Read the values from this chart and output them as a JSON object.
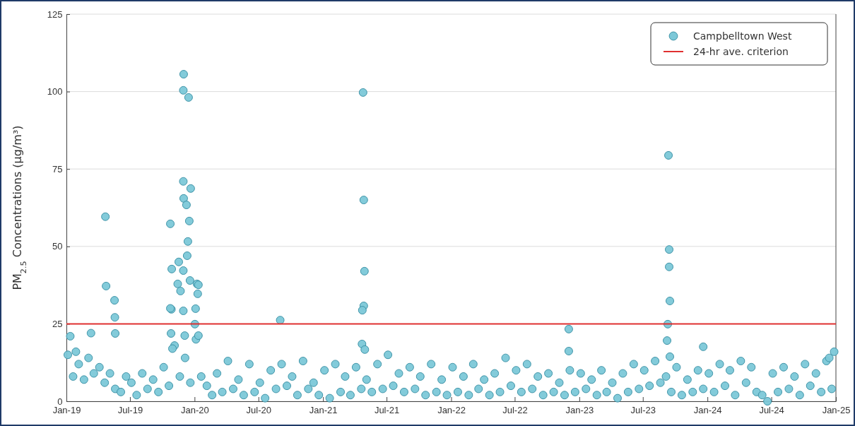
{
  "chart_data": {
    "type": "scatter",
    "ylabel": "PM$_{2.5}$ Concentrations (µg/m³)",
    "xlim": [
      "2019-01-01",
      "2025-01-01"
    ],
    "xticks": [
      {
        "value": "2019-01-01",
        "label": "Jan-19"
      },
      {
        "value": "2019-07-01",
        "label": "Jul-19"
      },
      {
        "value": "2020-01-01",
        "label": "Jan-20"
      },
      {
        "value": "2020-07-01",
        "label": "Jul-20"
      },
      {
        "value": "2021-01-01",
        "label": "Jan-21"
      },
      {
        "value": "2021-07-01",
        "label": "Jul-21"
      },
      {
        "value": "2022-01-01",
        "label": "Jan-22"
      },
      {
        "value": "2022-07-01",
        "label": "Jul-22"
      },
      {
        "value": "2023-01-01",
        "label": "Jan-23"
      },
      {
        "value": "2023-07-01",
        "label": "Jul-23"
      },
      {
        "value": "2024-01-01",
        "label": "Jan-24"
      },
      {
        "value": "2024-07-01",
        "label": "Jul-24"
      },
      {
        "value": "2025-01-01",
        "label": "Jan-25"
      }
    ],
    "ylim": [
      0,
      125
    ],
    "yticks": [
      0,
      25,
      50,
      75,
      100,
      125
    ],
    "grid": "y",
    "legend": "top right",
    "marker": "circle",
    "ref_lines": [
      {
        "axis": "y",
        "value": 25,
        "label": "24-hr ave. criterion",
        "color": "#e03030"
      }
    ],
    "series": [
      {
        "name": "Campbelltown West",
        "color": "#7cc8d8",
        "x": [
          "2019-01-05",
          "2019-01-20",
          "2019-02-05",
          "2019-02-20",
          "2019-03-05",
          "2019-03-20",
          "2019-04-05",
          "2019-04-20",
          "2019-05-05",
          "2019-05-20",
          "2019-06-05",
          "2019-06-20",
          "2019-07-05",
          "2019-07-20",
          "2019-08-05",
          "2019-08-20",
          "2019-09-05",
          "2019-09-20",
          "2019-10-05",
          "2019-10-20",
          "2019-11-05",
          "2019-11-20",
          "2019-12-05",
          "2019-12-20",
          "2020-01-05",
          "2020-01-20",
          "2020-02-05",
          "2020-02-20",
          "2020-03-05",
          "2020-03-20",
          "2020-04-05",
          "2020-04-20",
          "2020-05-05",
          "2020-05-20",
          "2020-06-05",
          "2020-06-20",
          "2020-07-05",
          "2020-07-20",
          "2020-08-05",
          "2020-08-20",
          "2020-09-05",
          "2020-09-20",
          "2020-10-05",
          "2020-10-20",
          "2020-11-05",
          "2020-11-20",
          "2020-12-05",
          "2020-12-20",
          "2021-01-05",
          "2021-01-20",
          "2021-02-05",
          "2021-02-20",
          "2021-03-05",
          "2021-03-20",
          "2021-04-05",
          "2021-04-20",
          "2021-05-05",
          "2021-05-20",
          "2021-06-05",
          "2021-06-20",
          "2021-07-05",
          "2021-07-20",
          "2021-08-05",
          "2021-08-20",
          "2021-09-05",
          "2021-09-20",
          "2021-10-05",
          "2021-10-20",
          "2021-11-05",
          "2021-11-20",
          "2021-12-05",
          "2021-12-20",
          "2022-01-05",
          "2022-01-20",
          "2022-02-05",
          "2022-02-20",
          "2022-03-05",
          "2022-03-20",
          "2022-04-05",
          "2022-04-20",
          "2022-05-05",
          "2022-05-20",
          "2022-06-05",
          "2022-06-20",
          "2022-07-05",
          "2022-07-20",
          "2022-08-05",
          "2022-08-20",
          "2022-09-05",
          "2022-09-20",
          "2022-10-05",
          "2022-10-20",
          "2022-11-05",
          "2022-11-20",
          "2022-12-05",
          "2022-12-20",
          "2023-01-05",
          "2023-01-20",
          "2023-02-05",
          "2023-02-20",
          "2023-03-05",
          "2023-03-20",
          "2023-04-05",
          "2023-04-20",
          "2023-05-05",
          "2023-05-20",
          "2023-06-05",
          "2023-06-20",
          "2023-07-05",
          "2023-07-20",
          "2023-08-05",
          "2023-08-20",
          "2023-09-05",
          "2023-09-20",
          "2023-10-05",
          "2023-10-20",
          "2023-11-05",
          "2023-11-20",
          "2023-12-05",
          "2023-12-20",
          "2024-01-05",
          "2024-01-20",
          "2024-02-05",
          "2024-02-20",
          "2024-03-05",
          "2024-03-20",
          "2024-04-05",
          "2024-04-20",
          "2024-05-05",
          "2024-05-20",
          "2024-06-05",
          "2024-06-20",
          "2024-07-05",
          "2024-07-20",
          "2024-08-05",
          "2024-08-20",
          "2024-09-05",
          "2024-09-20",
          "2024-10-05",
          "2024-10-20",
          "2024-11-05",
          "2024-11-20",
          "2024-12-05",
          "2024-12-20",
          "2019-01-12",
          "2019-01-28",
          "2019-03-12",
          "2019-04-22",
          "2019-04-24",
          "2019-05-18",
          "2019-05-19",
          "2019-05-20",
          "2019-10-24",
          "2019-10-28",
          "2019-10-27",
          "2019-11-14",
          "2019-11-22",
          "2019-12-01",
          "2019-11-30",
          "2019-12-15",
          "2019-11-30",
          "2019-12-01",
          "2019-12-09",
          "2019-12-21",
          "2019-12-17",
          "2019-12-13",
          "2019-12-11",
          "2019-10-26",
          "2019-11-17",
          "2019-11-30",
          "2019-12-19",
          "2020-01-08",
          "2020-01-12",
          "2020-01-10",
          "2019-10-24",
          "2019-11-30",
          "2020-01-04",
          "2020-01-02",
          "2019-10-30",
          "2019-12-04",
          "2020-01-12",
          "2020-09-01",
          "2021-04-25",
          "2021-04-27",
          "2021-04-29",
          "2021-04-27",
          "2021-04-23",
          "2021-04-22",
          "2021-04-30",
          "2022-12-02",
          "2022-12-02",
          "2023-09-12",
          "2023-09-14",
          "2023-09-14",
          "2023-09-16",
          "2023-09-10",
          "2023-09-08",
          "2023-09-16",
          "2023-12-20",
          "2024-12-13",
          "2024-12-27"
        ],
        "values": [
          15,
          8,
          12,
          7,
          14,
          9,
          11,
          6,
          9,
          4,
          3,
          8,
          6,
          2,
          9,
          4,
          7,
          3,
          11,
          5,
          18,
          8,
          14,
          6,
          20,
          8,
          5,
          2,
          9,
          3,
          13,
          4,
          7,
          2,
          12,
          3,
          6,
          1,
          10,
          4,
          12,
          5,
          8,
          2,
          13,
          4,
          6,
          2,
          10,
          1,
          12,
          3,
          8,
          2,
          11,
          4,
          7,
          3,
          12,
          4,
          15,
          5,
          9,
          3,
          11,
          4,
          8,
          2,
          12,
          3,
          7,
          2,
          11,
          3,
          8,
          2,
          12,
          4,
          7,
          2,
          9,
          3,
          14,
          5,
          10,
          3,
          12,
          4,
          8,
          2,
          9,
          3,
          6,
          2,
          10,
          3,
          9,
          4,
          7,
          2,
          10,
          3,
          6,
          1,
          9,
          3,
          12,
          4,
          10,
          5,
          13,
          6,
          8,
          3,
          11,
          2,
          7,
          3,
          10,
          4,
          9,
          3,
          12,
          5,
          10,
          2,
          13,
          6,
          11,
          3,
          2,
          0,
          9,
          3,
          11,
          4,
          8,
          2,
          12,
          5,
          9,
          3,
          13,
          4,
          21,
          16,
          22,
          59.6,
          37.2,
          32.6,
          27.1,
          21.9,
          57.3,
          42.7,
          29.7,
          37.9,
          35.6,
          105.6,
          100.4,
          98.1,
          71,
          65.5,
          63.4,
          68.7,
          58.2,
          51.6,
          47,
          21.9,
          45,
          42.2,
          39,
          37.9,
          37.6,
          34.7,
          30,
          29.2,
          29.9,
          24.9,
          17,
          21.2,
          21.2,
          26.2,
          99.7,
          65,
          42,
          30.8,
          29.4,
          18.5,
          16.7,
          23.3,
          16.2,
          79.4,
          49,
          43.4,
          32.4,
          24.9,
          19.6,
          14.4,
          17.6,
          14,
          16
        ]
      }
    ]
  }
}
